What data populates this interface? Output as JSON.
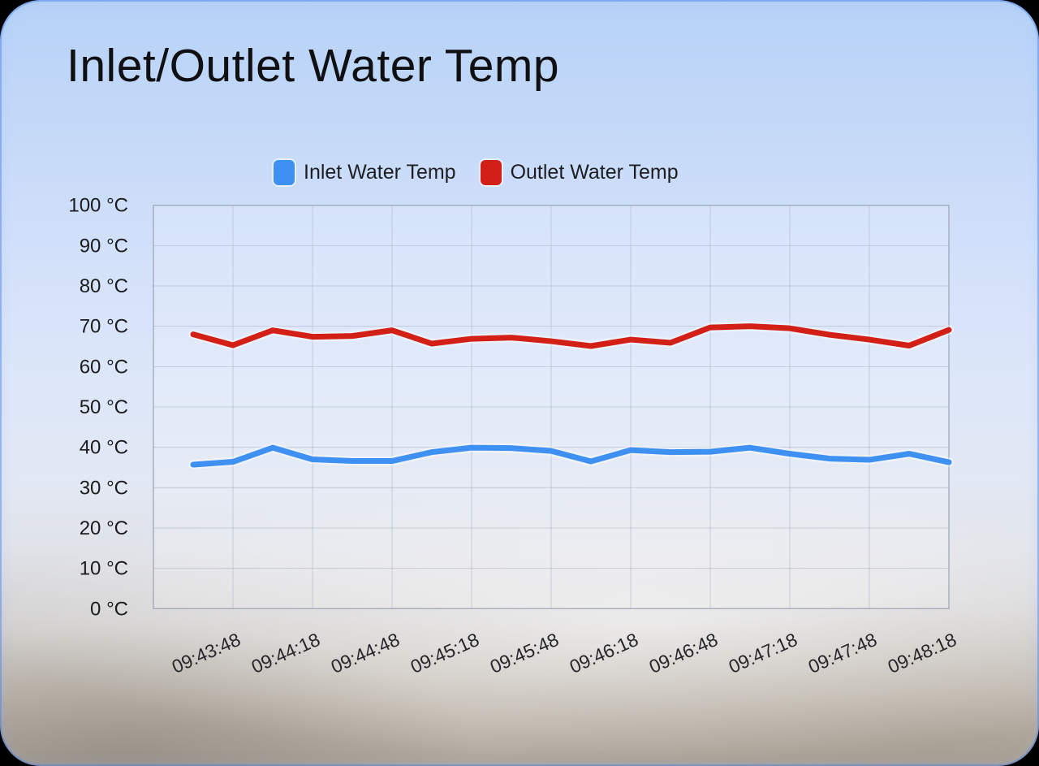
{
  "window": {
    "title": "Inlet/Outlet Water Temp"
  },
  "legend": {
    "items": [
      {
        "label": "Inlet Water Temp",
        "color": "#3E91F2"
      },
      {
        "label": "Outlet Water Temp",
        "color": "#D32017"
      }
    ]
  },
  "chart_data": {
    "type": "line",
    "title": "Inlet/Outlet Water Temp",
    "xlabel": "",
    "ylabel": "",
    "ylim": [
      0,
      100
    ],
    "y_ticks": [
      0,
      10,
      20,
      30,
      40,
      50,
      60,
      70,
      80,
      90,
      100
    ],
    "y_tick_suffix": " °C",
    "grid": true,
    "legend_position": "top",
    "x": [
      "09:43:33",
      "09:43:48",
      "09:44:03",
      "09:44:18",
      "09:44:33",
      "09:44:48",
      "09:45:03",
      "09:45:18",
      "09:45:33",
      "09:45:48",
      "09:46:03",
      "09:46:18",
      "09:46:33",
      "09:46:48",
      "09:47:03",
      "09:47:18",
      "09:47:33",
      "09:47:48",
      "09:48:03",
      "09:48:18"
    ],
    "x_tick_labels": [
      "09:43:48",
      "09:44:18",
      "09:44:48",
      "09:45:18",
      "09:45:48",
      "09:46:18",
      "09:46:48",
      "09:47:18",
      "09:47:48",
      "09:48:18"
    ],
    "series": [
      {
        "name": "Inlet Water Temp",
        "color": "#3E91F2",
        "values": [
          35.7,
          36.4,
          39.9,
          37.0,
          36.6,
          36.6,
          38.8,
          39.9,
          39.8,
          39.1,
          36.5,
          39.3,
          38.8,
          38.9,
          39.9,
          38.4,
          37.2,
          36.9,
          38.4,
          36.3
        ]
      },
      {
        "name": "Outlet Water Temp",
        "color": "#D32017",
        "values": [
          68.0,
          65.3,
          69.0,
          67.4,
          67.6,
          69.0,
          65.7,
          66.9,
          67.2,
          66.3,
          65.1,
          66.7,
          65.9,
          69.7,
          70.0,
          69.5,
          67.9,
          66.7,
          65.2,
          69.1
        ]
      }
    ]
  }
}
